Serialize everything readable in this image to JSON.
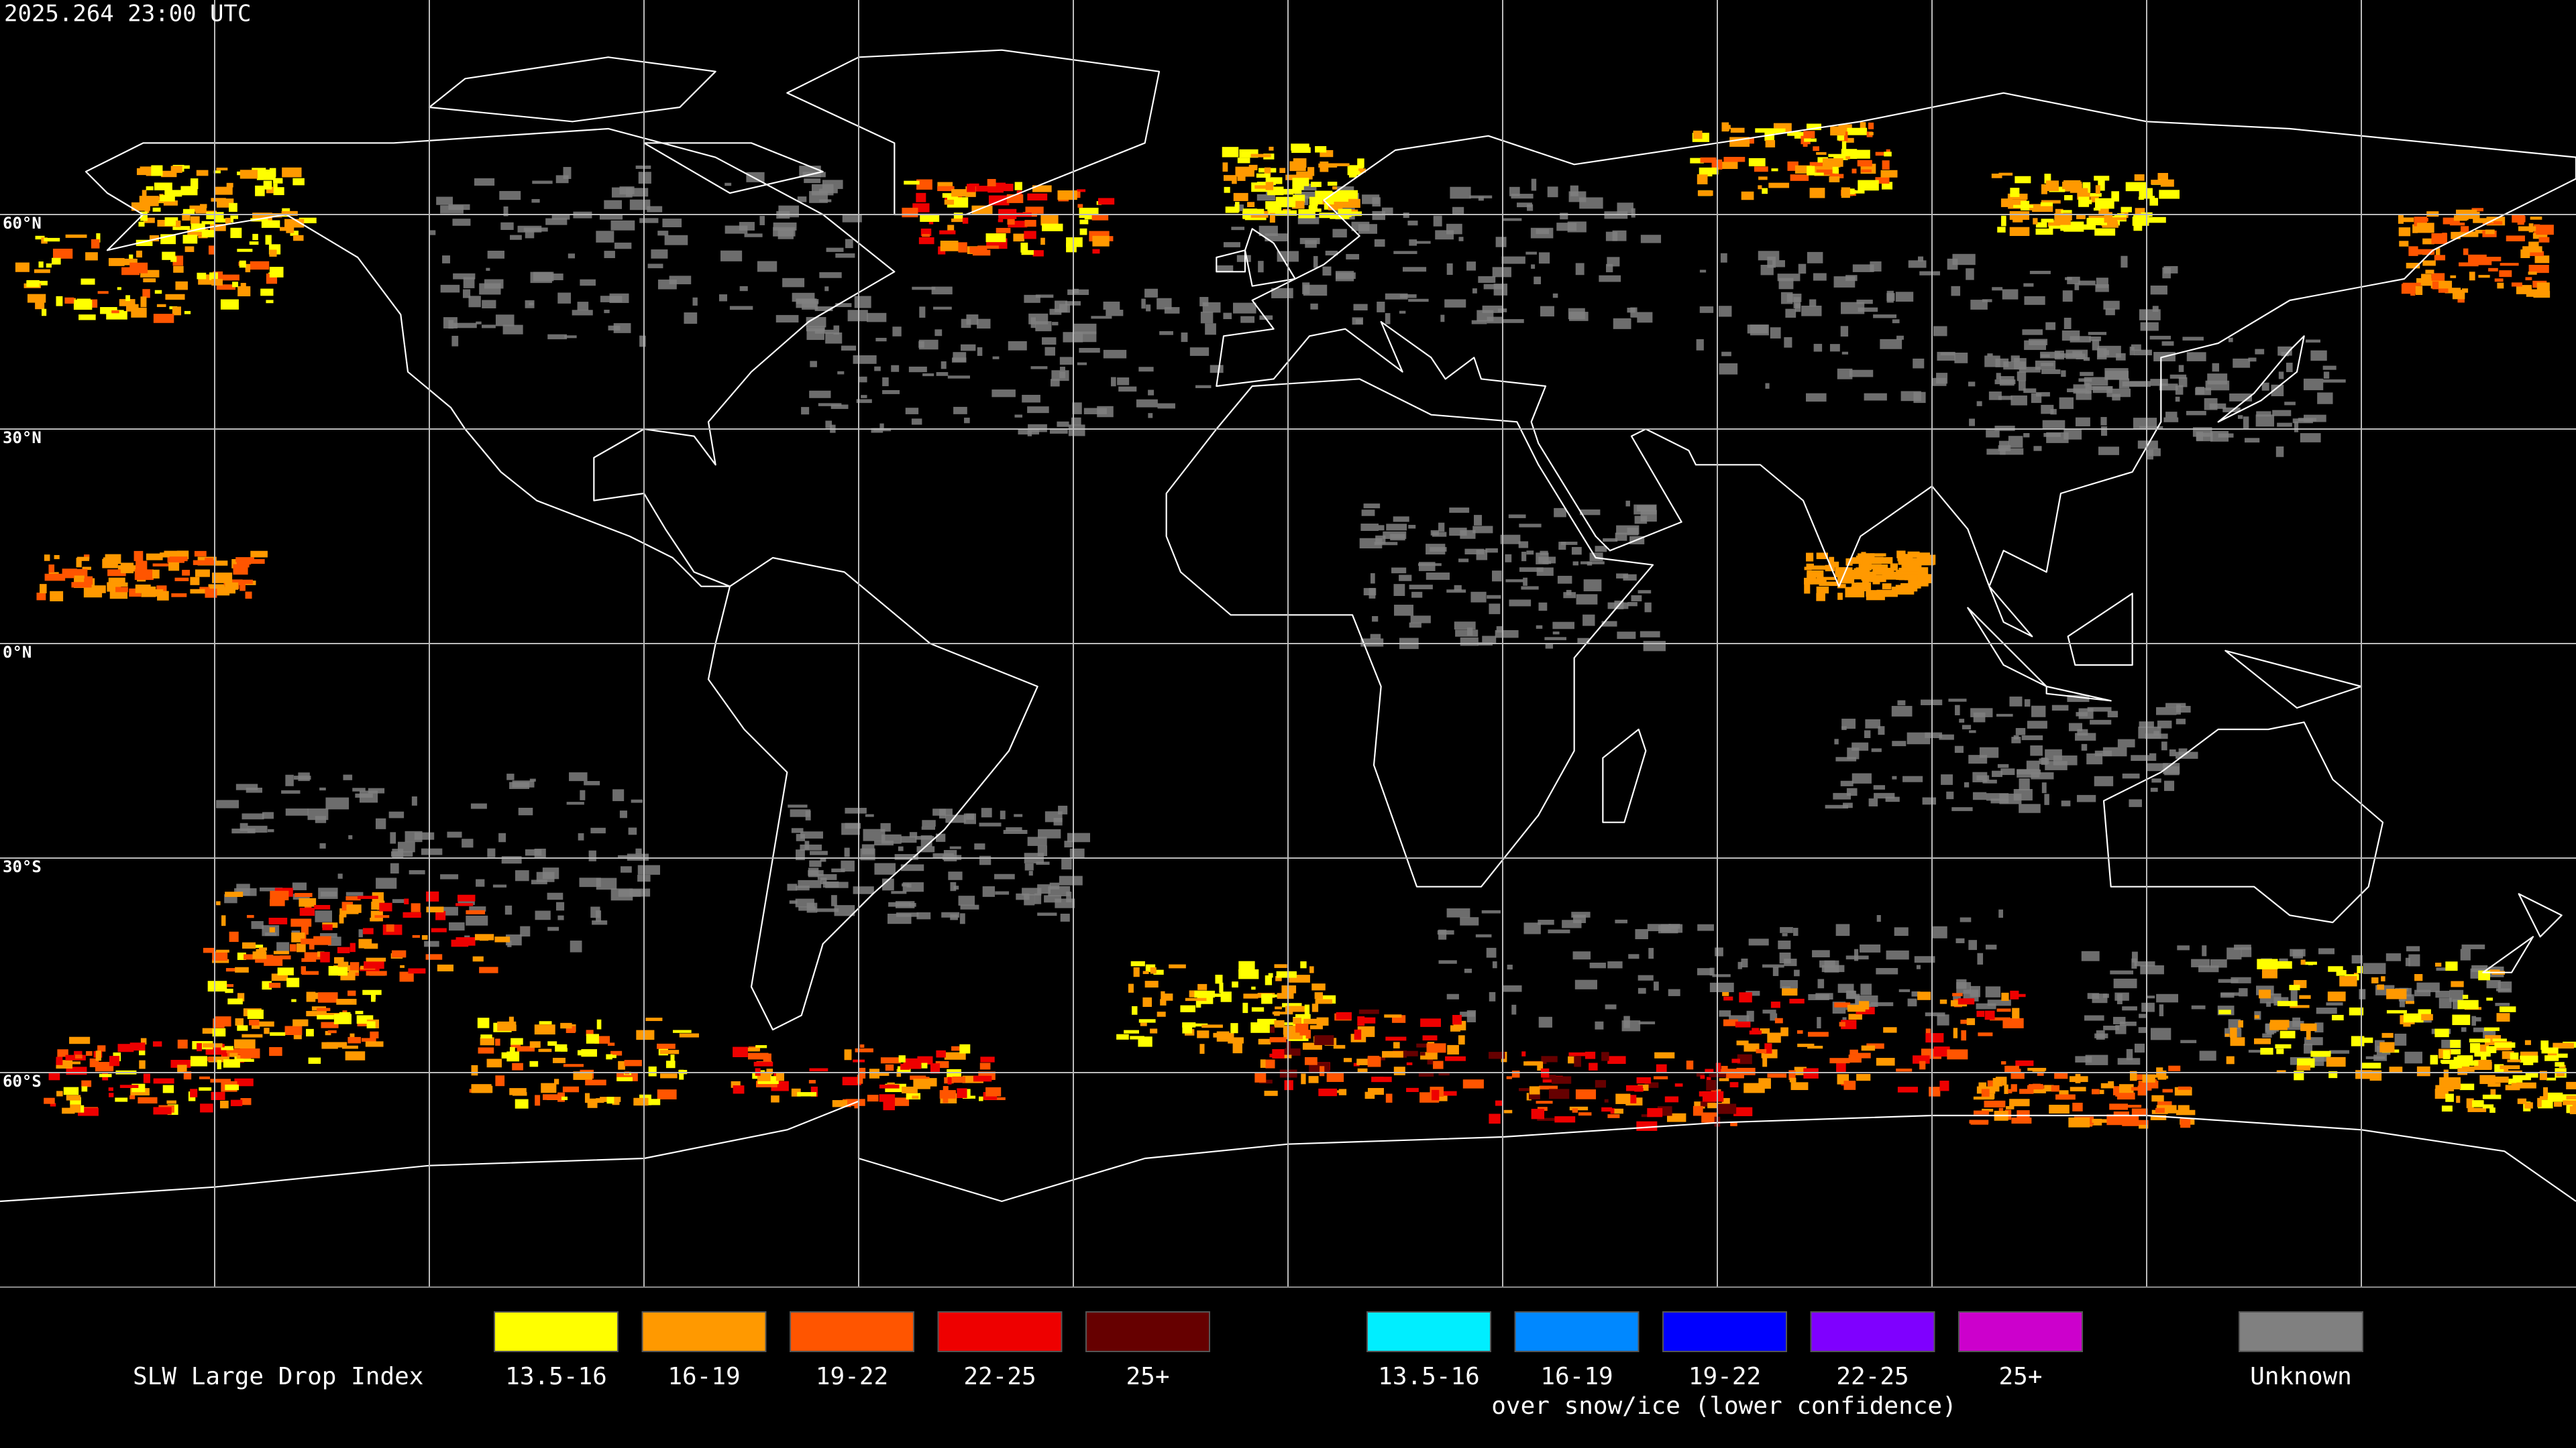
{
  "timestamp": "2025.264 23:00 UTC",
  "lat_labels": [
    "60°N",
    "30°N",
    "0°N",
    "30°S",
    "60°S"
  ],
  "legend": {
    "title": "SLW Large Drop Index",
    "items": [
      {
        "label": "13.5-16",
        "color": "#ffff00"
      },
      {
        "label": "16-19",
        "color": "#ff9900"
      },
      {
        "label": "19-22",
        "color": "#ff5500"
      },
      {
        "label": "22-25",
        "color": "#ee0000"
      },
      {
        "label": "25+",
        "color": "#660000"
      }
    ],
    "snow_items": [
      {
        "label": "13.5-16",
        "color": "#00eeff"
      },
      {
        "label": "16-19",
        "color": "#0088ff"
      },
      {
        "label": "19-22",
        "color": "#0000ff"
      },
      {
        "label": "22-25",
        "color": "#7f00ff"
      },
      {
        "label": "25+",
        "color": "#cc00cc"
      }
    ],
    "snow_note": "over snow/ice (lower confidence)",
    "unknown": {
      "label": "Unknown",
      "color": "#808080"
    }
  }
}
